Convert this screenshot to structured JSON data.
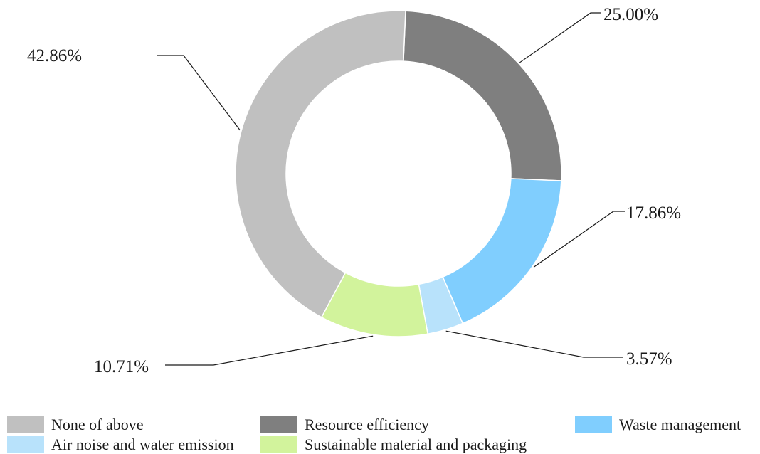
{
  "chart_data": {
    "type": "pie",
    "donut": true,
    "title": "",
    "categories": [
      "None of above",
      "Resource efficiency",
      "Waste management",
      "Air noise and water emission",
      "Sustainable material and packaging"
    ],
    "values": [
      42.86,
      25.0,
      17.86,
      3.57,
      10.71
    ],
    "value_labels": [
      "42.86%",
      "25.00%",
      "17.86%",
      "3.57%",
      "10.71%"
    ],
    "colors": [
      "#c0c0c0",
      "#7f7f7f",
      "#80cefe",
      "#b8e2fb",
      "#d2f39c"
    ],
    "legend": {
      "placement": "bottom",
      "items": [
        {
          "label": "None of above",
          "color": "#c0c0c0"
        },
        {
          "label": "Resource efficiency",
          "color": "#7f7f7f"
        },
        {
          "label": "Waste management",
          "color": "#80cefe"
        },
        {
          "label": "Air noise and water emission",
          "color": "#b8e2fb"
        },
        {
          "label": "Sustainable material and packaging",
          "color": "#d2f39c"
        }
      ]
    }
  }
}
